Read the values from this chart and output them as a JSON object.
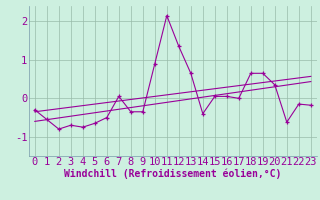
{
  "title": "",
  "xlabel": "Windchill (Refroidissement éolien,°C)",
  "ylabel": "",
  "background_color": "#cdf0e0",
  "grid_color": "#aaccbb",
  "line_color": "#990099",
  "xlim": [
    -0.5,
    23.5
  ],
  "ylim": [
    -1.5,
    2.4
  ],
  "xticks": [
    0,
    1,
    2,
    3,
    4,
    5,
    6,
    7,
    8,
    9,
    10,
    11,
    12,
    13,
    14,
    15,
    16,
    17,
    18,
    19,
    20,
    21,
    22,
    23
  ],
  "yticks": [
    -1,
    0,
    1,
    2
  ],
  "x_data": [
    0,
    1,
    2,
    3,
    4,
    5,
    6,
    7,
    8,
    9,
    10,
    11,
    12,
    13,
    14,
    15,
    16,
    17,
    18,
    19,
    20,
    21,
    22,
    23
  ],
  "y_series1": [
    -0.3,
    -0.55,
    -0.8,
    -0.7,
    -0.75,
    -0.65,
    -0.5,
    0.05,
    -0.35,
    -0.35,
    0.9,
    2.15,
    1.35,
    0.65,
    -0.4,
    0.05,
    0.05,
    0.0,
    0.65,
    0.65,
    0.35,
    -0.62,
    -0.15,
    -0.18
  ],
  "y_linear1": [
    -0.6,
    -0.555,
    -0.51,
    -0.465,
    -0.42,
    -0.375,
    -0.33,
    -0.285,
    -0.24,
    -0.195,
    -0.15,
    -0.105,
    -0.06,
    -0.015,
    0.03,
    0.075,
    0.12,
    0.165,
    0.21,
    0.255,
    0.3,
    0.345,
    0.39,
    0.435
  ],
  "y_linear2": [
    -0.35,
    -0.31,
    -0.27,
    -0.23,
    -0.19,
    -0.15,
    -0.11,
    -0.07,
    -0.03,
    0.01,
    0.05,
    0.09,
    0.13,
    0.17,
    0.21,
    0.25,
    0.29,
    0.33,
    0.37,
    0.41,
    0.45,
    0.49,
    0.53,
    0.57
  ],
  "font_size_xlabel": 7,
  "font_size_ticks": 7.5
}
